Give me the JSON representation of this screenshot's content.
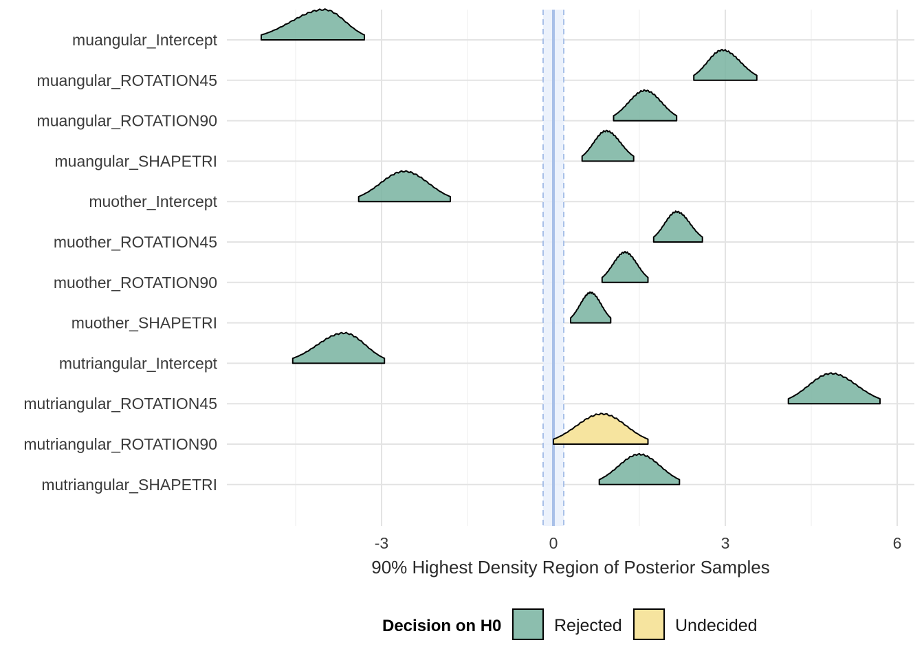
{
  "chart_data": {
    "type": "ridgeline",
    "xlabel": "90% Highest Density Region of Posterior Samples",
    "xlim": [
      -5.8,
      6.3
    ],
    "x_ticks": [
      -3,
      0,
      3,
      6
    ],
    "rope": {
      "center": 0,
      "lower": -0.18,
      "upper": 0.18,
      "color": "#a8c0e8"
    },
    "grid": true,
    "legend": {
      "title": "Decision on H0",
      "position": "bottom",
      "items": [
        {
          "label": "Rejected",
          "color": "#78b3a0"
        },
        {
          "label": "Undecided",
          "color": "#f5df8e"
        }
      ]
    },
    "rows": [
      {
        "label": "muangular_Intercept",
        "lo": -5.1,
        "hi": -3.3,
        "mode": -4.0,
        "decision": "Rejected"
      },
      {
        "label": "muangular_ROTATION45",
        "lo": 2.45,
        "hi": 3.55,
        "mode": 2.95,
        "decision": "Rejected"
      },
      {
        "label": "muangular_ROTATION90",
        "lo": 1.05,
        "hi": 2.15,
        "mode": 1.6,
        "decision": "Rejected"
      },
      {
        "label": "muangular_SHAPETRI",
        "lo": 0.5,
        "hi": 1.4,
        "mode": 0.92,
        "decision": "Rejected"
      },
      {
        "label": "muother_Intercept",
        "lo": -3.4,
        "hi": -1.8,
        "mode": -2.6,
        "decision": "Rejected"
      },
      {
        "label": "muother_ROTATION45",
        "lo": 1.75,
        "hi": 2.6,
        "mode": 2.15,
        "decision": "Rejected"
      },
      {
        "label": "muother_ROTATION90",
        "lo": 0.85,
        "hi": 1.65,
        "mode": 1.25,
        "decision": "Rejected"
      },
      {
        "label": "muother_SHAPETRI",
        "lo": 0.3,
        "hi": 1.0,
        "mode": 0.65,
        "decision": "Rejected"
      },
      {
        "label": "mutriangular_Intercept",
        "lo": -4.55,
        "hi": -2.95,
        "mode": -3.65,
        "decision": "Rejected"
      },
      {
        "label": "mutriangular_ROTATION45",
        "lo": 4.1,
        "hi": 5.7,
        "mode": 4.85,
        "decision": "Rejected"
      },
      {
        "label": "mutriangular_ROTATION90",
        "lo": 0.0,
        "hi": 1.65,
        "mode": 0.85,
        "decision": "Undecided"
      },
      {
        "label": "mutriangular_SHAPETRI",
        "lo": 0.8,
        "hi": 2.2,
        "mode": 1.5,
        "decision": "Rejected"
      }
    ]
  }
}
